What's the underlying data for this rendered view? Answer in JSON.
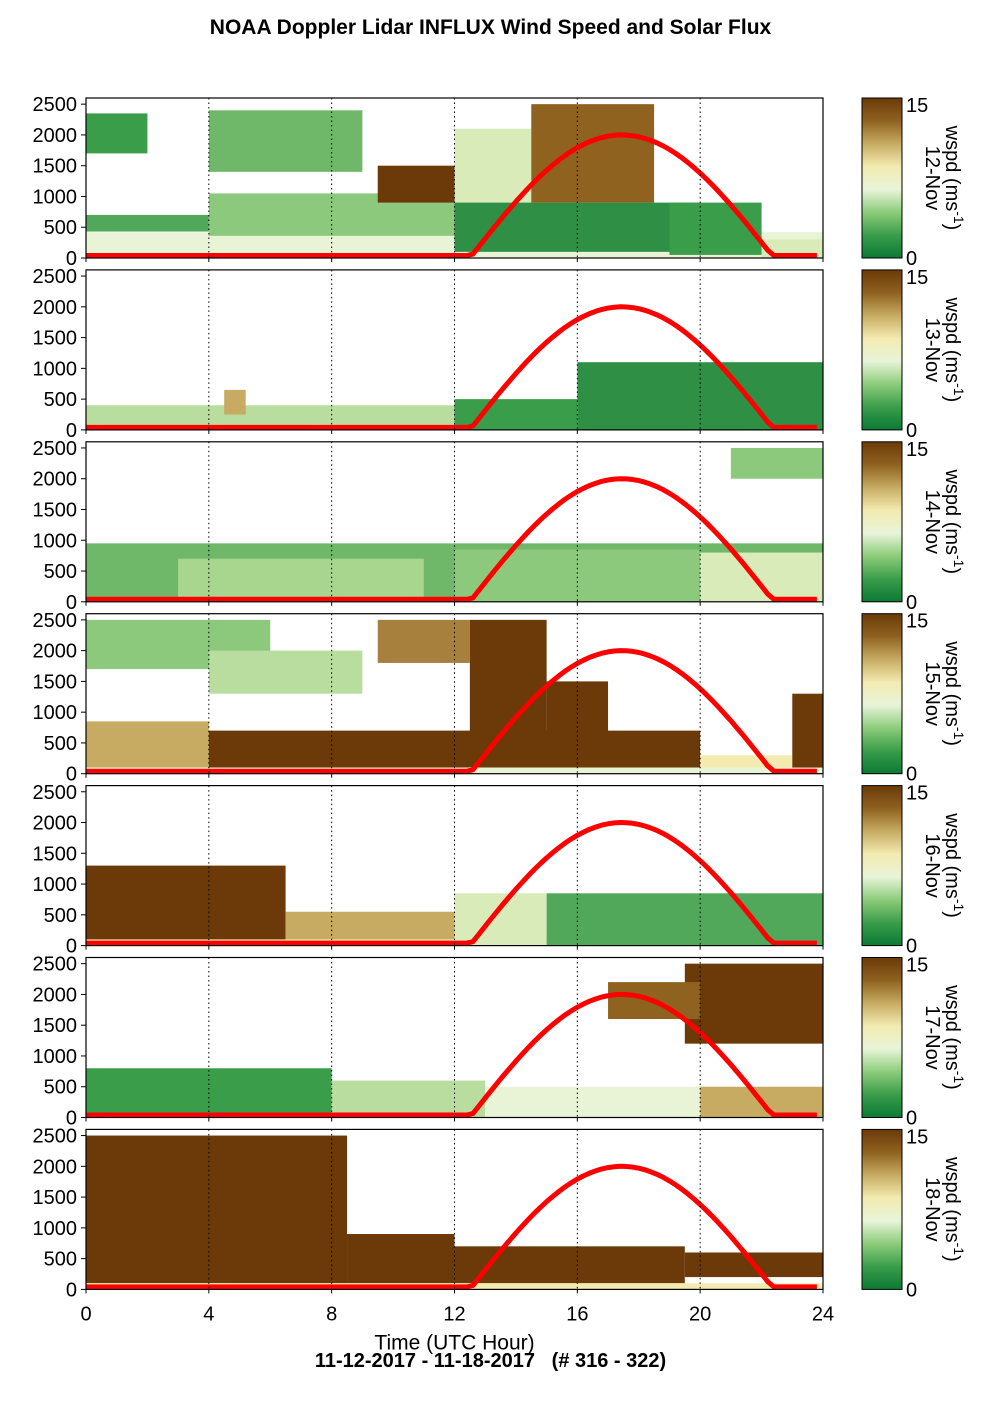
{
  "title": "NOAA Doppler Lidar INFLUX Wind Speed and Solar Flux",
  "footer": "11-12-2017 - 11-18-2017   (# 316 - 322)",
  "colors": {
    "colormap": [
      "#0b7a35",
      "#3a9d4a",
      "#8ccc7a",
      "#e8f4d9",
      "#f3ebb0",
      "#c7ab62",
      "#8f6220",
      "#6b3a08"
    ],
    "solar_curve": "#ff0000"
  },
  "chart_data": {
    "type": "heatmap",
    "xlabel": "Time (UTC Hour)",
    "xlim": [
      0,
      24
    ],
    "x_ticks": [
      0,
      4,
      8,
      12,
      16,
      20,
      24
    ],
    "ylim": [
      0,
      2600
    ],
    "y_ticks": [
      0,
      500,
      1000,
      1500,
      2000,
      2500
    ],
    "colorbar": {
      "label": "wspd (ms-1)",
      "label_main": "wspd (ms",
      "label_sup": "-1",
      "label_close": ")",
      "range": [
        0,
        15
      ],
      "ticks": [
        0,
        15
      ]
    },
    "solar_flux_curve": {
      "sunrise_hour": 12.5,
      "sunset_hour": 22.4,
      "peak_hour": 17.45,
      "peak_value_axis_units": 2000
    },
    "panels": [
      {
        "date_label": "12-Nov",
        "bands": [
          {
            "x0": 0,
            "x1": 24,
            "y0": 0,
            "y1": 420,
            "color": "#e9f4d6"
          },
          {
            "x0": 0,
            "x1": 4,
            "y0": 430,
            "y1": 700,
            "color": "#52a85a"
          },
          {
            "x0": 4,
            "x1": 12,
            "y0": 360,
            "y1": 1050,
            "color": "#8cc97c"
          },
          {
            "x0": 0,
            "x1": 2,
            "y0": 1700,
            "y1": 2350,
            "color": "#3a9d4a"
          },
          {
            "x0": 4,
            "x1": 9,
            "y0": 1400,
            "y1": 2400,
            "color": "#6fb86a"
          },
          {
            "x0": 9.5,
            "x1": 12,
            "y0": 900,
            "y1": 1500,
            "color": "#6b3a08"
          },
          {
            "x0": 12,
            "x1": 14.5,
            "y0": 800,
            "y1": 2100,
            "color": "#d9ebb8"
          },
          {
            "x0": 14.5,
            "x1": 18.5,
            "y0": 900,
            "y1": 2500,
            "color": "#8f6220"
          },
          {
            "x0": 12,
            "x1": 20,
            "y0": 100,
            "y1": 900,
            "color": "#2e8f45"
          },
          {
            "x0": 19,
            "x1": 22,
            "y0": 50,
            "y1": 900,
            "color": "#3a9d4a"
          },
          {
            "x0": 22,
            "x1": 24,
            "y0": 0,
            "y1": 300,
            "color": "#d9ebb8"
          }
        ]
      },
      {
        "date_label": "13-Nov",
        "bands": [
          {
            "x0": 0,
            "x1": 12,
            "y0": 0,
            "y1": 400,
            "color": "#b9dd9e"
          },
          {
            "x0": 12,
            "x1": 16,
            "y0": 0,
            "y1": 500,
            "color": "#3a9d4a"
          },
          {
            "x0": 16,
            "x1": 24,
            "y0": 0,
            "y1": 1100,
            "color": "#2e8f45"
          },
          {
            "x0": 4.5,
            "x1": 5.2,
            "y0": 250,
            "y1": 650,
            "color": "#c7ab62"
          }
        ]
      },
      {
        "date_label": "14-Nov",
        "bands": [
          {
            "x0": 0,
            "x1": 24,
            "y0": 0,
            "y1": 950,
            "color": "#6fb86a"
          },
          {
            "x0": 3,
            "x1": 11,
            "y0": 0,
            "y1": 700,
            "color": "#a9d68f"
          },
          {
            "x0": 12,
            "x1": 20,
            "y0": 0,
            "y1": 850,
            "color": "#8cc97c"
          },
          {
            "x0": 20,
            "x1": 24,
            "y0": 0,
            "y1": 800,
            "color": "#d9ebb8"
          },
          {
            "x0": 21,
            "x1": 24,
            "y0": 2000,
            "y1": 2500,
            "color": "#8cc97c"
          }
        ]
      },
      {
        "date_label": "15-Nov",
        "bands": [
          {
            "x0": 0,
            "x1": 4,
            "y0": 100,
            "y1": 850,
            "color": "#c7ab62"
          },
          {
            "x0": 4,
            "x1": 20,
            "y0": 100,
            "y1": 700,
            "color": "#6b3a08"
          },
          {
            "x0": 0,
            "x1": 24,
            "y0": 0,
            "y1": 100,
            "color": "#e9f4d6"
          },
          {
            "x0": 0,
            "x1": 6,
            "y0": 1700,
            "y1": 2500,
            "color": "#8cc97c"
          },
          {
            "x0": 4,
            "x1": 9,
            "y0": 1300,
            "y1": 2000,
            "color": "#b9dd9e"
          },
          {
            "x0": 9.5,
            "x1": 12.5,
            "y0": 1800,
            "y1": 2500,
            "color": "#a8803d"
          },
          {
            "x0": 12.5,
            "x1": 15,
            "y0": 600,
            "y1": 2500,
            "color": "#6b3a08"
          },
          {
            "x0": 15,
            "x1": 17,
            "y0": 200,
            "y1": 1500,
            "color": "#6b3a08"
          },
          {
            "x0": 20,
            "x1": 23,
            "y0": 100,
            "y1": 300,
            "color": "#f3ebb0"
          },
          {
            "x0": 23,
            "x1": 24,
            "y0": 100,
            "y1": 1300,
            "color": "#6b3a08"
          }
        ]
      },
      {
        "date_label": "16-Nov",
        "bands": [
          {
            "x0": 0,
            "x1": 6.5,
            "y0": 100,
            "y1": 1300,
            "color": "#6b3a08"
          },
          {
            "x0": 6.5,
            "x1": 12,
            "y0": 100,
            "y1": 550,
            "color": "#c7ab62"
          },
          {
            "x0": 0,
            "x1": 24,
            "y0": 0,
            "y1": 100,
            "color": "#f3ebb0"
          },
          {
            "x0": 12,
            "x1": 15,
            "y0": 0,
            "y1": 850,
            "color": "#d9ebb8"
          },
          {
            "x0": 15,
            "x1": 24,
            "y0": 0,
            "y1": 850,
            "color": "#52a85a"
          }
        ]
      },
      {
        "date_label": "17-Nov",
        "bands": [
          {
            "x0": 0,
            "x1": 8,
            "y0": 0,
            "y1": 800,
            "color": "#3a9d4a"
          },
          {
            "x0": 8,
            "x1": 13,
            "y0": 0,
            "y1": 600,
            "color": "#b9dd9e"
          },
          {
            "x0": 13,
            "x1": 20,
            "y0": 0,
            "y1": 500,
            "color": "#e9f4d6"
          },
          {
            "x0": 20,
            "x1": 24,
            "y0": 0,
            "y1": 500,
            "color": "#c7ab62"
          },
          {
            "x0": 19.5,
            "x1": 24,
            "y0": 1200,
            "y1": 2500,
            "color": "#6b3a08"
          },
          {
            "x0": 17,
            "x1": 20,
            "y0": 1600,
            "y1": 2200,
            "color": "#8f6220"
          }
        ]
      },
      {
        "date_label": "18-Nov",
        "bands": [
          {
            "x0": 0,
            "x1": 8.5,
            "y0": 100,
            "y1": 2500,
            "color": "#6b3a08"
          },
          {
            "x0": 8.5,
            "x1": 12,
            "y0": 100,
            "y1": 900,
            "color": "#6b3a08"
          },
          {
            "x0": 12,
            "x1": 19.5,
            "y0": 100,
            "y1": 700,
            "color": "#6b3a08"
          },
          {
            "x0": 19.5,
            "x1": 24,
            "y0": 200,
            "y1": 600,
            "color": "#6b3a08"
          },
          {
            "x0": 0,
            "x1": 24,
            "y0": 0,
            "y1": 100,
            "color": "#f3ebb0"
          }
        ]
      }
    ]
  }
}
